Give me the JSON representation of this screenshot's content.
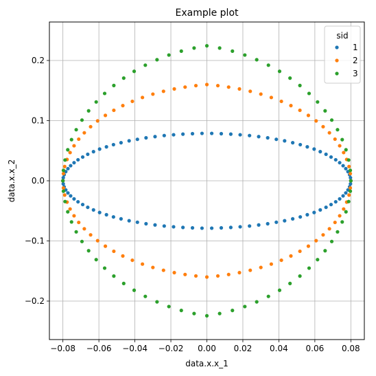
{
  "chart_data": {
    "type": "scatter",
    "title": "Example plot",
    "xlabel": "data.x.x_1",
    "ylabel": "data.x.x_2",
    "xlim": [
      -0.0875,
      0.0875
    ],
    "ylim": [
      -0.264,
      0.264
    ],
    "xticks": [
      -0.08,
      -0.06,
      -0.04,
      -0.02,
      0.0,
      0.02,
      0.04,
      0.06,
      0.08
    ],
    "xtick_labels": [
      "−0.08",
      "−0.06",
      "−0.04",
      "−0.02",
      "0.00",
      "0.02",
      "0.04",
      "0.06",
      "0.08"
    ],
    "yticks": [
      -0.2,
      -0.1,
      0.0,
      0.1,
      0.2
    ],
    "ytick_labels": [
      "−0.2",
      "−0.1",
      "0.0",
      "0.1",
      "0.2"
    ],
    "grid": true,
    "legend": {
      "title": "sid",
      "placement": "top-right",
      "entries": [
        "1",
        "2",
        "3"
      ]
    },
    "series": [
      {
        "name": "1",
        "color": "#1f77b4",
        "points": [
          [
            0.08,
            0.0
          ],
          [
            0.0798,
            0.0051
          ],
          [
            0.0793,
            0.0101
          ],
          [
            0.0784,
            0.0152
          ],
          [
            0.0772,
            0.0202
          ],
          [
            0.0757,
            0.0251
          ],
          [
            0.0738,
            0.0301
          ],
          [
            0.0716,
            0.0349
          ],
          [
            0.069,
            0.0395
          ],
          [
            0.0662,
            0.0441
          ],
          [
            0.063,
            0.0484
          ],
          [
            0.0596,
            0.0527
          ],
          [
            0.0558,
            0.0564
          ],
          [
            0.0519,
            0.0601
          ],
          [
            0.0477,
            0.0633
          ],
          [
            0.0432,
            0.0664
          ],
          [
            0.0386,
            0.0689
          ],
          [
            0.0338,
            0.0714
          ],
          [
            0.0288,
            0.0734
          ],
          [
            0.0237,
            0.0752
          ],
          [
            0.0185,
            0.0765
          ],
          [
            0.0133,
            0.0776
          ],
          [
            0.008,
            0.0783
          ],
          [
            0.0027,
            0.0788
          ],
          [
            -0.0027,
            0.0788
          ],
          [
            -0.008,
            0.0783
          ],
          [
            -0.0133,
            0.0776
          ],
          [
            -0.0185,
            0.0765
          ],
          [
            -0.0237,
            0.0752
          ],
          [
            -0.0288,
            0.0734
          ],
          [
            -0.0338,
            0.0714
          ],
          [
            -0.0386,
            0.0689
          ],
          [
            -0.0432,
            0.0664
          ],
          [
            -0.0477,
            0.0633
          ],
          [
            -0.0519,
            0.0601
          ],
          [
            -0.0558,
            0.0564
          ],
          [
            -0.0596,
            0.0527
          ],
          [
            -0.063,
            0.0484
          ],
          [
            -0.0662,
            0.0441
          ],
          [
            -0.069,
            0.0395
          ],
          [
            -0.0716,
            0.0349
          ],
          [
            -0.0738,
            0.0301
          ],
          [
            -0.0757,
            0.0251
          ],
          [
            -0.0772,
            0.0202
          ],
          [
            -0.0784,
            0.0152
          ],
          [
            -0.0793,
            0.0101
          ],
          [
            -0.0798,
            0.0051
          ],
          [
            -0.08,
            0.0
          ],
          [
            -0.0798,
            -0.0051
          ],
          [
            -0.0793,
            -0.0101
          ],
          [
            -0.0784,
            -0.0152
          ],
          [
            -0.0772,
            -0.0202
          ],
          [
            -0.0757,
            -0.0251
          ],
          [
            -0.0738,
            -0.0301
          ],
          [
            -0.0716,
            -0.0349
          ],
          [
            -0.069,
            -0.0395
          ],
          [
            -0.0662,
            -0.0441
          ],
          [
            -0.063,
            -0.0484
          ],
          [
            -0.0596,
            -0.0527
          ],
          [
            -0.0558,
            -0.0564
          ],
          [
            -0.0519,
            -0.0601
          ],
          [
            -0.0477,
            -0.0633
          ],
          [
            -0.0432,
            -0.0664
          ],
          [
            -0.0386,
            -0.0689
          ],
          [
            -0.0338,
            -0.0714
          ],
          [
            -0.0288,
            -0.0734
          ],
          [
            -0.0237,
            -0.0752
          ],
          [
            -0.0185,
            -0.0765
          ],
          [
            -0.0133,
            -0.0776
          ],
          [
            -0.008,
            -0.0783
          ],
          [
            -0.0027,
            -0.0788
          ],
          [
            0.0027,
            -0.0788
          ],
          [
            0.008,
            -0.0783
          ],
          [
            0.0133,
            -0.0776
          ],
          [
            0.0185,
            -0.0765
          ],
          [
            0.0237,
            -0.0752
          ],
          [
            0.0288,
            -0.0734
          ],
          [
            0.0338,
            -0.0714
          ],
          [
            0.0386,
            -0.0689
          ],
          [
            0.0432,
            -0.0664
          ],
          [
            0.0477,
            -0.0633
          ],
          [
            0.0519,
            -0.0601
          ],
          [
            0.0558,
            -0.0564
          ],
          [
            0.0596,
            -0.0527
          ],
          [
            0.063,
            -0.0484
          ],
          [
            0.0662,
            -0.0441
          ],
          [
            0.069,
            -0.0395
          ],
          [
            0.0716,
            -0.0349
          ],
          [
            0.0738,
            -0.0301
          ],
          [
            0.0757,
            -0.0251
          ],
          [
            0.0772,
            -0.0202
          ],
          [
            0.0784,
            -0.0152
          ],
          [
            0.0793,
            -0.0101
          ],
          [
            0.0798,
            -0.0051
          ]
        ]
      },
      {
        "name": "2",
        "color": "#ff7f0e",
        "points": [
          [
            0.08,
            0.0
          ],
          [
            0.0797,
            0.0119
          ],
          [
            0.079,
            0.0237
          ],
          [
            0.0777,
            0.0354
          ],
          [
            0.076,
            0.0469
          ],
          [
            0.0738,
            0.0582
          ],
          [
            0.0712,
            0.0692
          ],
          [
            0.0681,
            0.0798
          ],
          [
            0.0646,
            0.0899
          ],
          [
            0.0607,
            0.0996
          ],
          [
            0.0564,
            0.1087
          ],
          [
            0.0517,
            0.1172
          ],
          [
            0.0467,
            0.125
          ],
          [
            0.0414,
            0.1321
          ],
          [
            0.0358,
            0.1385
          ],
          [
            0.03,
            0.1441
          ],
          [
            0.0241,
            0.1488
          ],
          [
            0.0181,
            0.1527
          ],
          [
            0.0121,
            0.1558
          ],
          [
            0.0061,
            0.1582
          ],
          [
            0.0,
            0.16
          ],
          [
            -0.0061,
            0.1582
          ],
          [
            -0.0121,
            0.1558
          ],
          [
            -0.0181,
            0.1527
          ],
          [
            -0.0241,
            0.1488
          ],
          [
            -0.03,
            0.1441
          ],
          [
            -0.0358,
            0.1385
          ],
          [
            -0.0414,
            0.1321
          ],
          [
            -0.0467,
            0.125
          ],
          [
            -0.0517,
            0.1172
          ],
          [
            -0.0564,
            0.1087
          ],
          [
            -0.0607,
            0.0996
          ],
          [
            -0.0646,
            0.0899
          ],
          [
            -0.0681,
            0.0798
          ],
          [
            -0.0712,
            0.0692
          ],
          [
            -0.0738,
            0.0582
          ],
          [
            -0.076,
            0.0469
          ],
          [
            -0.0777,
            0.0354
          ],
          [
            -0.079,
            0.0237
          ],
          [
            -0.0797,
            0.0119
          ],
          [
            -0.08,
            0.0
          ],
          [
            -0.0797,
            -0.0119
          ],
          [
            -0.079,
            -0.0237
          ],
          [
            -0.0777,
            -0.0354
          ],
          [
            -0.076,
            -0.0469
          ],
          [
            -0.0738,
            -0.0582
          ],
          [
            -0.0712,
            -0.0692
          ],
          [
            -0.0681,
            -0.0798
          ],
          [
            -0.0646,
            -0.0899
          ],
          [
            -0.0607,
            -0.0996
          ],
          [
            -0.0564,
            -0.1087
          ],
          [
            -0.0517,
            -0.1172
          ],
          [
            -0.0467,
            -0.125
          ],
          [
            -0.0414,
            -0.1321
          ],
          [
            -0.0358,
            -0.1385
          ],
          [
            -0.03,
            -0.1441
          ],
          [
            -0.0241,
            -0.1488
          ],
          [
            -0.0181,
            -0.1527
          ],
          [
            -0.0121,
            -0.1558
          ],
          [
            -0.0061,
            -0.1582
          ],
          [
            0.0,
            -0.16
          ],
          [
            0.0061,
            -0.1582
          ],
          [
            0.0121,
            -0.1558
          ],
          [
            0.0181,
            -0.1527
          ],
          [
            0.0241,
            -0.1488
          ],
          [
            0.03,
            -0.1441
          ],
          [
            0.0358,
            -0.1385
          ],
          [
            0.0414,
            -0.1321
          ],
          [
            0.0467,
            -0.125
          ],
          [
            0.0517,
            -0.1172
          ],
          [
            0.0564,
            -0.1087
          ],
          [
            0.0607,
            -0.0996
          ],
          [
            0.0646,
            -0.0899
          ],
          [
            0.0681,
            -0.0798
          ],
          [
            0.0712,
            -0.0692
          ],
          [
            0.0738,
            -0.0582
          ],
          [
            0.076,
            -0.0469
          ],
          [
            0.0777,
            -0.0354
          ],
          [
            0.079,
            -0.0237
          ],
          [
            0.0797,
            -0.0119
          ]
        ]
      },
      {
        "name": "3",
        "color": "#2ca02c",
        "points": [
          [
            0.08,
            0.0
          ],
          [
            0.0797,
            0.0173
          ],
          [
            0.0788,
            0.0345
          ],
          [
            0.0773,
            0.0516
          ],
          [
            0.0752,
            0.0684
          ],
          [
            0.0726,
            0.0849
          ],
          [
            0.0694,
            0.1009
          ],
          [
            0.0657,
            0.1163
          ],
          [
            0.0615,
            0.1311
          ],
          [
            0.0568,
            0.1452
          ],
          [
            0.0517,
            0.1584
          ],
          [
            0.0462,
            0.1707
          ],
          [
            0.0404,
            0.182
          ],
          [
            0.0342,
            0.1922
          ],
          [
            0.0277,
            0.2013
          ],
          [
            0.0211,
            0.2091
          ],
          [
            0.0142,
            0.2156
          ],
          [
            0.0071,
            0.2207
          ],
          [
            0.0,
            0.2244
          ],
          [
            -0.0071,
            0.2207
          ],
          [
            -0.0142,
            0.2156
          ],
          [
            -0.0211,
            0.2091
          ],
          [
            -0.0277,
            0.2013
          ],
          [
            -0.0342,
            0.1922
          ],
          [
            -0.0404,
            0.182
          ],
          [
            -0.0462,
            0.1707
          ],
          [
            -0.0517,
            0.1584
          ],
          [
            -0.0568,
            0.1452
          ],
          [
            -0.0615,
            0.1311
          ],
          [
            -0.0657,
            0.1163
          ],
          [
            -0.0694,
            0.1009
          ],
          [
            -0.0726,
            0.0849
          ],
          [
            -0.0752,
            0.0684
          ],
          [
            -0.0773,
            0.0516
          ],
          [
            -0.0788,
            0.0345
          ],
          [
            -0.0797,
            0.0173
          ],
          [
            -0.08,
            0.0
          ],
          [
            -0.0797,
            -0.0173
          ],
          [
            -0.0788,
            -0.0345
          ],
          [
            -0.0773,
            -0.0516
          ],
          [
            -0.0752,
            -0.0684
          ],
          [
            -0.0726,
            -0.0849
          ],
          [
            -0.0694,
            -0.1009
          ],
          [
            -0.0657,
            -0.1163
          ],
          [
            -0.0615,
            -0.1311
          ],
          [
            -0.0568,
            -0.1452
          ],
          [
            -0.0517,
            -0.1584
          ],
          [
            -0.0462,
            -0.1707
          ],
          [
            -0.0404,
            -0.182
          ],
          [
            -0.0342,
            -0.1922
          ],
          [
            -0.0277,
            -0.2013
          ],
          [
            -0.0211,
            -0.2091
          ],
          [
            -0.0142,
            -0.2156
          ],
          [
            -0.0071,
            -0.2207
          ],
          [
            0.0,
            -0.2244
          ],
          [
            0.0071,
            -0.2207
          ],
          [
            0.0142,
            -0.2156
          ],
          [
            0.0211,
            -0.2091
          ],
          [
            0.0277,
            -0.2013
          ],
          [
            0.0342,
            -0.1922
          ],
          [
            0.0404,
            -0.182
          ],
          [
            0.0462,
            -0.1707
          ],
          [
            0.0517,
            -0.1584
          ],
          [
            0.0568,
            -0.1452
          ],
          [
            0.0615,
            -0.1311
          ],
          [
            0.0657,
            -0.1163
          ],
          [
            0.0694,
            -0.1009
          ],
          [
            0.0726,
            -0.0849
          ],
          [
            0.0752,
            -0.0684
          ],
          [
            0.0773,
            -0.0516
          ],
          [
            0.0788,
            -0.0345
          ],
          [
            0.0797,
            -0.0173
          ]
        ]
      }
    ]
  }
}
